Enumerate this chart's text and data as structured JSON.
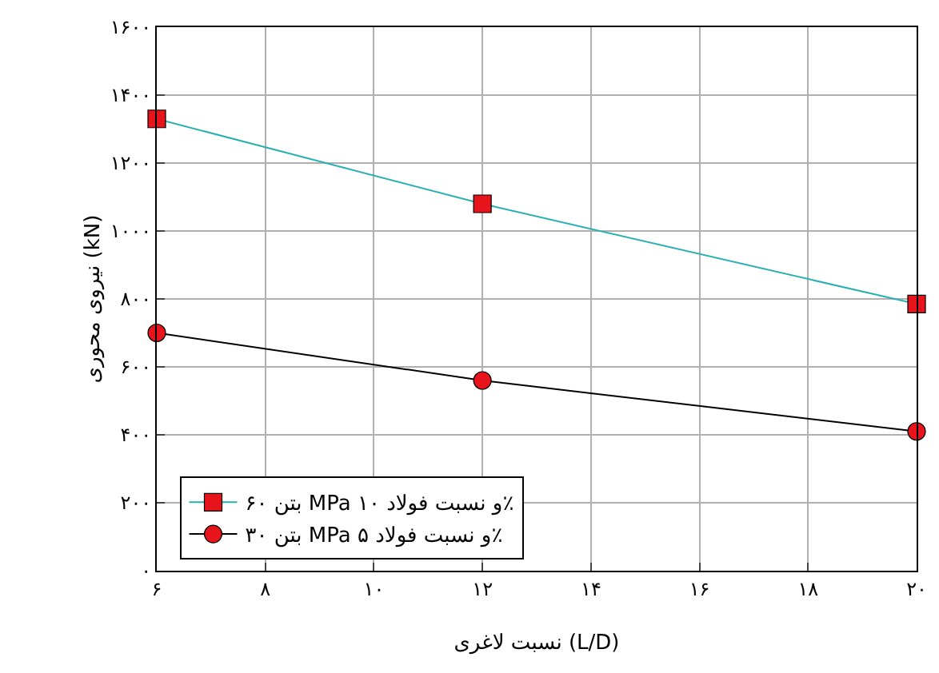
{
  "chart_data": {
    "type": "line",
    "xlabel": "نسبت لاغری (L/D)",
    "ylabel": "نیروی محوری (kN)",
    "x": [
      6,
      12,
      20
    ],
    "series": [
      {
        "name": "بتن ۶۰ MPa و نسبت فولاد ۱۰٪",
        "color": "#2ab0b0",
        "colors": [
          "#e8141b",
          "#e8141b",
          "#e8141b"
        ],
        "marker": "square",
        "values": [
          1330,
          1080,
          785
        ]
      },
      {
        "name": "بتن ۳۰ MPa و نسبت فولاد ۵٪",
        "color": "#000000",
        "colors": [
          "#e8141b",
          "#e8141b",
          "#e8141b"
        ],
        "marker": "circle",
        "values": [
          700,
          560,
          410
        ]
      }
    ],
    "xlim": [
      6,
      20
    ],
    "ylim": [
      0,
      1600
    ],
    "xticks": [
      {
        "value": 6,
        "label": "۶"
      },
      {
        "value": 8,
        "label": "۸"
      },
      {
        "value": 10,
        "label": "۱۰"
      },
      {
        "value": 12,
        "label": "۱۲"
      },
      {
        "value": 14,
        "label": "۱۴"
      },
      {
        "value": 16,
        "label": "۱۶"
      },
      {
        "value": 18,
        "label": "۱۸"
      },
      {
        "value": 20,
        "label": "۲۰"
      }
    ],
    "yticks": [
      {
        "value": 0,
        "label": "۰"
      },
      {
        "value": 200,
        "label": "۲۰۰"
      },
      {
        "value": 400,
        "label": "۴۰۰"
      },
      {
        "value": 600,
        "label": "۶۰۰"
      },
      {
        "value": 800,
        "label": "۸۰۰"
      },
      {
        "value": 1000,
        "label": "۱۰۰۰"
      },
      {
        "value": 1200,
        "label": "۱۲۰۰"
      },
      {
        "value": 1400,
        "label": "۱۴۰۰"
      },
      {
        "value": 1600,
        "label": "۱۶۰۰"
      }
    ],
    "grid": true,
    "legend": "bottom left"
  }
}
